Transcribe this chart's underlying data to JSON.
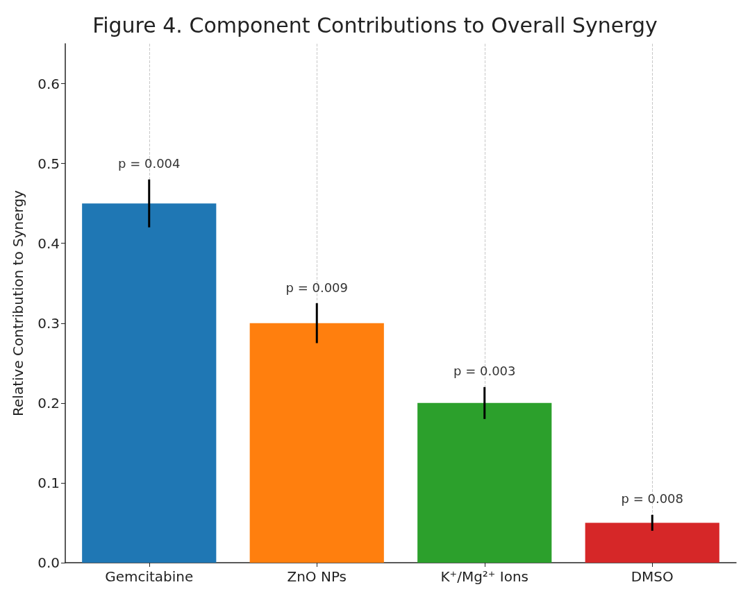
{
  "chart_data": {
    "type": "bar",
    "title": "Figure 4. Component Contributions to Overall Synergy",
    "ylabel": "Relative Contribution to Synergy",
    "categories": [
      "Gemcitabine",
      "ZnO NPs",
      "K⁺/Mg²⁺ Ions",
      "DMSO"
    ],
    "values": [
      0.45,
      0.3,
      0.2,
      0.05
    ],
    "colors": [
      "#1f77b4",
      "#ff7f0e",
      "#2ca02c",
      "#d62728"
    ],
    "errors": [
      0.03,
      0.025,
      0.02,
      0.01
    ],
    "annotations": [
      "p = 0.004",
      "p = 0.009",
      "p = 0.003",
      "p = 0.008"
    ],
    "ylim": [
      0,
      0.65
    ],
    "yticks": [
      {
        "value": 0,
        "label": "0.0"
      },
      0.1,
      0.2,
      0.3,
      0.4,
      0.5,
      0.6
    ],
    "grid": "x"
  }
}
